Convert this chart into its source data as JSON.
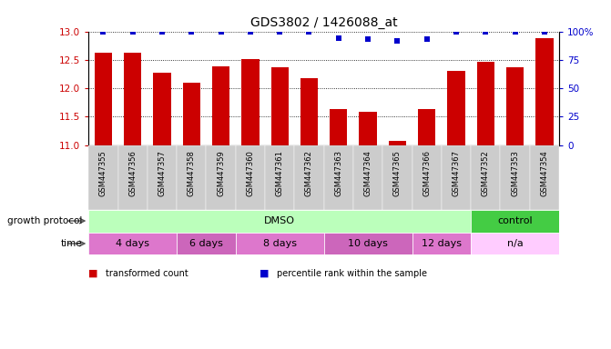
{
  "title": "GDS3802 / 1426088_at",
  "samples": [
    "GSM447355",
    "GSM447356",
    "GSM447357",
    "GSM447358",
    "GSM447359",
    "GSM447360",
    "GSM447361",
    "GSM447362",
    "GSM447363",
    "GSM447364",
    "GSM447365",
    "GSM447366",
    "GSM447367",
    "GSM447352",
    "GSM447353",
    "GSM447354"
  ],
  "bar_values": [
    12.63,
    12.63,
    12.28,
    12.1,
    12.38,
    12.52,
    12.37,
    12.18,
    11.63,
    11.58,
    11.08,
    11.63,
    12.3,
    12.47,
    12.37,
    12.88
  ],
  "percentile_values": [
    100,
    100,
    100,
    100,
    100,
    100,
    100,
    100,
    94,
    93,
    92,
    93,
    100,
    100,
    100,
    100
  ],
  "bar_color": "#cc0000",
  "percentile_color": "#0000cc",
  "ylim_left": [
    11,
    13
  ],
  "ylim_right": [
    0,
    100
  ],
  "yticks_left": [
    11,
    11.5,
    12,
    12.5,
    13
  ],
  "yticks_right": [
    0,
    25,
    50,
    75,
    100
  ],
  "growth_protocol_groups": [
    {
      "label": "DMSO",
      "start": 0,
      "end": 13,
      "color": "#bbffbb"
    },
    {
      "label": "control",
      "start": 13,
      "end": 16,
      "color": "#44cc44"
    }
  ],
  "time_groups": [
    {
      "label": "4 days",
      "start": 0,
      "end": 3,
      "color": "#dd77cc"
    },
    {
      "label": "6 days",
      "start": 3,
      "end": 5,
      "color": "#cc66bb"
    },
    {
      "label": "8 days",
      "start": 5,
      "end": 8,
      "color": "#dd77cc"
    },
    {
      "label": "10 days",
      "start": 8,
      "end": 11,
      "color": "#cc66bb"
    },
    {
      "label": "12 days",
      "start": 11,
      "end": 13,
      "color": "#dd77cc"
    },
    {
      "label": "n/a",
      "start": 13,
      "end": 16,
      "color": "#ffccff"
    }
  ],
  "legend_items": [
    {
      "label": "transformed count",
      "color": "#cc0000"
    },
    {
      "label": "percentile rank within the sample",
      "color": "#0000cc"
    }
  ],
  "row_label_growth": "growth protocol",
  "row_label_time": "time",
  "background_color": "#ffffff",
  "tick_label_color_left": "#cc0000",
  "tick_label_color_right": "#0000cc"
}
